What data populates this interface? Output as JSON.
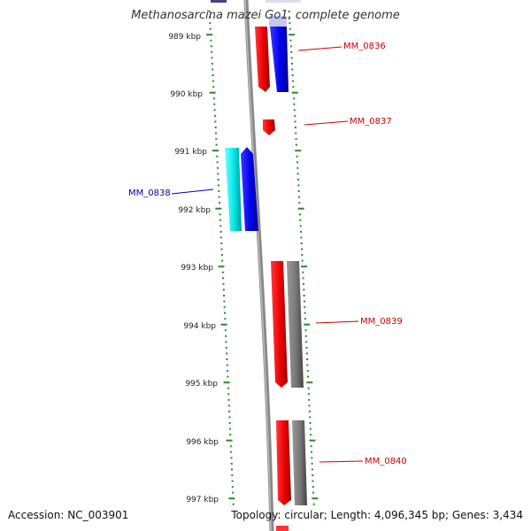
{
  "title": "Methanosarcina mazei Go1, complete genome",
  "footer": {
    "accession": "Accession: NC_003901",
    "summary": "Topology: circular; Length: 4,096,345 bp; Genes: 3,434"
  },
  "scale_labels": [
    "989 kbp",
    "990 kbp",
    "991 kbp",
    "992 kbp",
    "993 kbp",
    "994 kbp",
    "995 kbp",
    "996 kbp",
    "997 kbp"
  ],
  "gene_labels": [
    {
      "name": "MM_0836",
      "color": "#cc0000"
    },
    {
      "name": "MM_0837",
      "color": "#cc0000"
    },
    {
      "name": "MM_0838",
      "color": "#0000aa"
    },
    {
      "name": "MM_0839",
      "color": "#cc0000"
    },
    {
      "name": "MM_0840",
      "color": "#cc0000"
    }
  ],
  "colors": {
    "forward_cds": "#ff0000",
    "reverse_cds": "#0000ff",
    "reverse_feature": "#00e0e0",
    "gene_track": "#777777",
    "backbone": "#888888",
    "tick": "#2a8a2a"
  }
}
